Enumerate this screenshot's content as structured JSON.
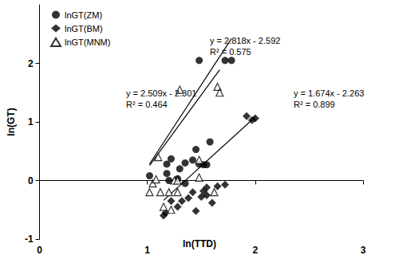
{
  "chart_data": {
    "type": "scatter",
    "x_label": "ln(TTD)",
    "y_label": "ln(GT)",
    "xlim": [
      0,
      3
    ],
    "xticks": [
      0,
      1,
      2,
      3
    ],
    "ylim": [
      -1,
      3
    ],
    "yticks": [
      -1,
      0,
      1,
      2
    ],
    "grid": false,
    "legend": "top-left",
    "series": [
      {
        "name": "lnGT(ZM)",
        "color": "#000000",
        "marker": "circle",
        "x": [
          1.02,
          1.18,
          1.22,
          1.18,
          1.3,
          1.35,
          1.42,
          1.45,
          1.48,
          1.52,
          1.55,
          1.58,
          1.28,
          1.35,
          1.48,
          1.72,
          1.78,
          1.2
        ],
        "values": [
          0.08,
          0.28,
          0.37,
          0.12,
          0.2,
          0.3,
          0.35,
          0.53,
          0.28,
          0.27,
          0.27,
          0.66,
          0.03,
          -0.05,
          2.05,
          2.05,
          2.05,
          0.0
        ]
      },
      {
        "name": "lnGT(BM)",
        "color": "#000000",
        "marker": "diamond",
        "x": [
          1.15,
          1.17,
          1.22,
          1.28,
          1.32,
          1.38,
          1.42,
          1.45,
          1.5,
          1.52,
          1.55,
          1.6,
          1.65,
          1.72,
          1.92,
          1.97,
          2.0,
          1.55
        ],
        "values": [
          -0.6,
          -0.55,
          -0.35,
          -0.45,
          -0.35,
          -0.3,
          -0.2,
          -0.52,
          -0.28,
          -0.18,
          -0.12,
          -0.38,
          -0.1,
          -0.07,
          1.1,
          1.03,
          1.06,
          -0.25
        ]
      },
      {
        "name": "lnGT(MNM)",
        "color": "#000000",
        "marker": "open_triangle",
        "x": [
          1.02,
          1.05,
          1.08,
          1.1,
          1.12,
          1.15,
          1.2,
          1.22,
          1.25,
          1.28,
          1.3,
          1.48,
          1.48,
          1.65,
          1.67,
          1.62,
          1.28
        ],
        "values": [
          -0.2,
          -0.05,
          0.02,
          0.4,
          -0.2,
          -0.45,
          -0.2,
          -0.5,
          0.0,
          -0.2,
          1.55,
          0.05,
          0.35,
          1.6,
          1.5,
          -0.2,
          0.0
        ]
      }
    ],
    "trendlines": [
      {
        "series": "lnGT(ZM)",
        "slope": 2.818,
        "intercept": -2.592,
        "r2": 0.575,
        "label": "y = 2.818x - 2.592",
        "r2_label": "R² = 0.575"
      },
      {
        "series": "lnGT(BM)",
        "slope": 1.674,
        "intercept": -2.263,
        "r2": 0.899,
        "label": "y = 1.674x - 2.263",
        "r2_label": "R² = 0.899"
      },
      {
        "series": "lnGT(MNM)",
        "slope": 2.509,
        "intercept": -2.301,
        "r2": 0.464,
        "label": "y = 2.509x - 2.301",
        "r2_label": "R² = 0.464"
      }
    ]
  }
}
